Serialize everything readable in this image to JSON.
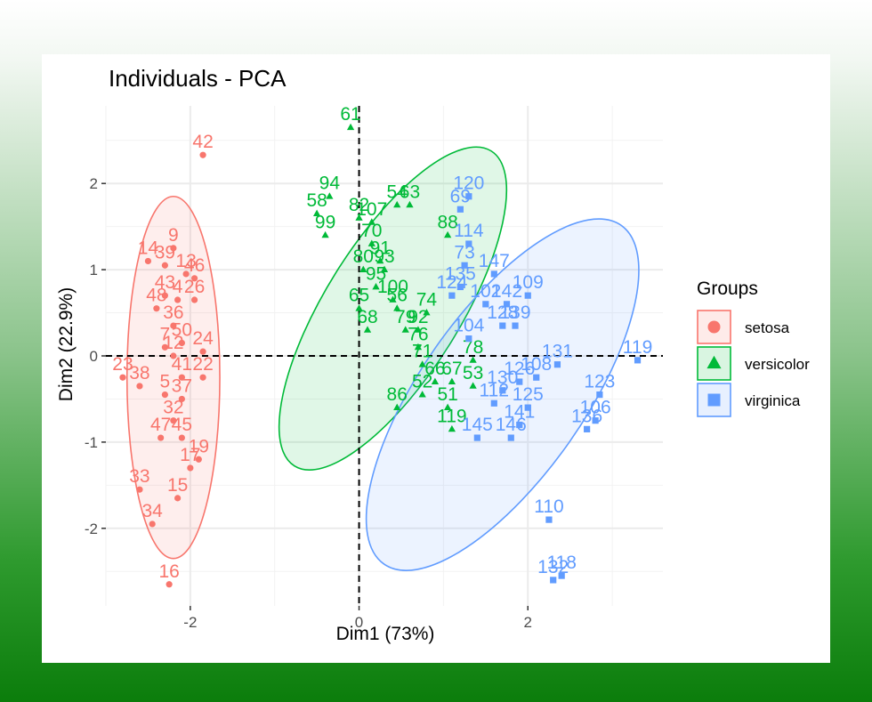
{
  "chart_data": {
    "type": "scatter",
    "title": "Individuals - PCA",
    "xlabel": "Dim1 (73%)",
    "ylabel": "Dim2 (22.9%)",
    "xlim": [
      -3.0,
      3.6
    ],
    "ylim": [
      -2.9,
      2.9
    ],
    "xticks": [
      -2,
      0,
      2
    ],
    "yticks": [
      2,
      1,
      0,
      -1,
      -2
    ],
    "xtick_labels": [
      "-2",
      "0",
      "2"
    ],
    "ytick_labels": [
      "2",
      "1",
      "0",
      "-1",
      "-2"
    ],
    "grid": true,
    "reference_lines": {
      "x": 0,
      "y": 0,
      "style": "dashed"
    },
    "legend": {
      "title": "Groups",
      "position": "right",
      "entries": [
        {
          "name": "setosa",
          "color": "#F8766D",
          "shape": "circle",
          "glyph": "a"
        },
        {
          "name": "versicolor",
          "color": "#00BA38",
          "shape": "triangle",
          "glyph": "a"
        },
        {
          "name": "virginica",
          "color": "#619CFF",
          "shape": "square",
          "glyph": "a"
        }
      ]
    },
    "series": [
      {
        "name": "setosa",
        "color": "#F8766D",
        "shape": "circle",
        "ellipse": {
          "cx": -2.2,
          "cy": -0.25,
          "rx": 0.55,
          "ry": 2.1,
          "angle": 0
        },
        "points": [
          {
            "x": -1.85,
            "y": 2.33,
            "label": "42"
          },
          {
            "x": -2.2,
            "y": 1.25,
            "label": "9"
          },
          {
            "x": -2.5,
            "y": 1.1,
            "label": "14"
          },
          {
            "x": -2.3,
            "y": 1.05,
            "label": "39"
          },
          {
            "x": -2.05,
            "y": 0.95,
            "label": "13"
          },
          {
            "x": -1.95,
            "y": 0.9,
            "label": "46"
          },
          {
            "x": -2.3,
            "y": 0.7,
            "label": "43"
          },
          {
            "x": -2.15,
            "y": 0.65,
            "label": "4"
          },
          {
            "x": -1.95,
            "y": 0.65,
            "label": "26"
          },
          {
            "x": -2.4,
            "y": 0.55,
            "label": "48"
          },
          {
            "x": -2.2,
            "y": 0.35,
            "label": "36"
          },
          {
            "x": -2.3,
            "y": 0.1,
            "label": "7"
          },
          {
            "x": -2.1,
            "y": 0.15,
            "label": "50"
          },
          {
            "x": -2.2,
            "y": 0.0,
            "label": "12"
          },
          {
            "x": -1.85,
            "y": 0.05,
            "label": "24"
          },
          {
            "x": -2.8,
            "y": -0.25,
            "label": "23"
          },
          {
            "x": -2.6,
            "y": -0.35,
            "label": "38"
          },
          {
            "x": -2.1,
            "y": -0.25,
            "label": "41"
          },
          {
            "x": -1.85,
            "y": -0.25,
            "label": "22"
          },
          {
            "x": -2.3,
            "y": -0.45,
            "label": "5"
          },
          {
            "x": -2.1,
            "y": -0.5,
            "label": "37"
          },
          {
            "x": -2.2,
            "y": -0.75,
            "label": "32"
          },
          {
            "x": -2.35,
            "y": -0.95,
            "label": "47"
          },
          {
            "x": -2.1,
            "y": -0.95,
            "label": "45"
          },
          {
            "x": -1.9,
            "y": -1.2,
            "label": "19"
          },
          {
            "x": -2.0,
            "y": -1.3,
            "label": "17"
          },
          {
            "x": -2.6,
            "y": -1.55,
            "label": "33"
          },
          {
            "x": -2.15,
            "y": -1.65,
            "label": "15"
          },
          {
            "x": -2.45,
            "y": -1.95,
            "label": "34"
          },
          {
            "x": -2.25,
            "y": -2.65,
            "label": "16"
          }
        ]
      },
      {
        "name": "versicolor",
        "color": "#00BA38",
        "shape": "triangle",
        "ellipse": {
          "cx": 0.4,
          "cy": 0.55,
          "rx": 2.2,
          "ry": 0.78,
          "angle": -58
        },
        "points": [
          {
            "x": -0.1,
            "y": 2.65,
            "label": "61"
          },
          {
            "x": -0.35,
            "y": 1.85,
            "label": "94"
          },
          {
            "x": -0.5,
            "y": 1.65,
            "label": "58"
          },
          {
            "x": -0.4,
            "y": 1.4,
            "label": "99"
          },
          {
            "x": 0.0,
            "y": 1.6,
            "label": "82"
          },
          {
            "x": 0.15,
            "y": 1.55,
            "label": "107"
          },
          {
            "x": 0.45,
            "y": 1.75,
            "label": "54"
          },
          {
            "x": 0.6,
            "y": 1.75,
            "label": "63"
          },
          {
            "x": 0.15,
            "y": 1.3,
            "label": "70"
          },
          {
            "x": 1.05,
            "y": 1.4,
            "label": "88"
          },
          {
            "x": 0.25,
            "y": 1.1,
            "label": "91"
          },
          {
            "x": 0.3,
            "y": 1.0,
            "label": "93"
          },
          {
            "x": 0.05,
            "y": 1.0,
            "label": "80"
          },
          {
            "x": 0.2,
            "y": 0.8,
            "label": "95"
          },
          {
            "x": 0.4,
            "y": 0.65,
            "label": "100"
          },
          {
            "x": 0.45,
            "y": 0.55,
            "label": "56"
          },
          {
            "x": 0.0,
            "y": 0.55,
            "label": "65"
          },
          {
            "x": 0.8,
            "y": 0.5,
            "label": "74"
          },
          {
            "x": 0.1,
            "y": 0.3,
            "label": "68"
          },
          {
            "x": 0.55,
            "y": 0.3,
            "label": "79"
          },
          {
            "x": 0.7,
            "y": 0.3,
            "label": "92"
          },
          {
            "x": 0.7,
            "y": 0.1,
            "label": "76"
          },
          {
            "x": 0.75,
            "y": -0.1,
            "label": "71"
          },
          {
            "x": 1.35,
            "y": -0.05,
            "label": "78"
          },
          {
            "x": 0.9,
            "y": -0.3,
            "label": "66"
          },
          {
            "x": 1.1,
            "y": -0.3,
            "label": "67"
          },
          {
            "x": 0.75,
            "y": -0.45,
            "label": "52"
          },
          {
            "x": 1.35,
            "y": -0.35,
            "label": "53"
          },
          {
            "x": 0.45,
            "y": -0.6,
            "label": "86"
          },
          {
            "x": 1.05,
            "y": -0.6,
            "label": "51"
          },
          {
            "x": 1.1,
            "y": -0.85,
            "label": "119"
          }
        ]
      },
      {
        "name": "virginica",
        "color": "#619CFF",
        "shape": "square",
        "ellipse": {
          "cx": 1.7,
          "cy": -0.45,
          "rx": 2.45,
          "ry": 0.95,
          "angle": -55
        },
        "points": [
          {
            "x": 1.3,
            "y": 1.85,
            "label": "120"
          },
          {
            "x": 1.2,
            "y": 1.7,
            "label": "69"
          },
          {
            "x": 1.3,
            "y": 1.3,
            "label": "114"
          },
          {
            "x": 1.25,
            "y": 1.05,
            "label": "73"
          },
          {
            "x": 1.6,
            "y": 0.95,
            "label": "147"
          },
          {
            "x": 2.0,
            "y": 0.7,
            "label": "109"
          },
          {
            "x": 1.2,
            "y": 0.8,
            "label": "135"
          },
          {
            "x": 1.1,
            "y": 0.7,
            "label": "124"
          },
          {
            "x": 1.5,
            "y": 0.6,
            "label": "102"
          },
          {
            "x": 1.75,
            "y": 0.6,
            "label": "142"
          },
          {
            "x": 1.7,
            "y": 0.35,
            "label": "128"
          },
          {
            "x": 1.85,
            "y": 0.35,
            "label": "139"
          },
          {
            "x": 1.3,
            "y": 0.2,
            "label": "104"
          },
          {
            "x": 3.3,
            "y": -0.05,
            "label": "119"
          },
          {
            "x": 2.35,
            "y": -0.1,
            "label": "131"
          },
          {
            "x": 2.1,
            "y": -0.25,
            "label": "108"
          },
          {
            "x": 2.85,
            "y": -0.45,
            "label": "123"
          },
          {
            "x": 1.9,
            "y": -0.3,
            "label": "126"
          },
          {
            "x": 1.7,
            "y": -0.4,
            "label": "130"
          },
          {
            "x": 1.6,
            "y": -0.55,
            "label": "112"
          },
          {
            "x": 2.8,
            "y": -0.75,
            "label": "106"
          },
          {
            "x": 2.7,
            "y": -0.85,
            "label": "136"
          },
          {
            "x": 2.0,
            "y": -0.6,
            "label": "125"
          },
          {
            "x": 1.9,
            "y": -0.8,
            "label": "141"
          },
          {
            "x": 1.4,
            "y": -0.95,
            "label": "145"
          },
          {
            "x": 1.8,
            "y": -0.95,
            "label": "146"
          },
          {
            "x": 2.25,
            "y": -1.9,
            "label": "110"
          },
          {
            "x": 2.3,
            "y": -2.6,
            "label": "132"
          },
          {
            "x": 2.4,
            "y": -2.55,
            "label": "118"
          }
        ]
      }
    ]
  }
}
